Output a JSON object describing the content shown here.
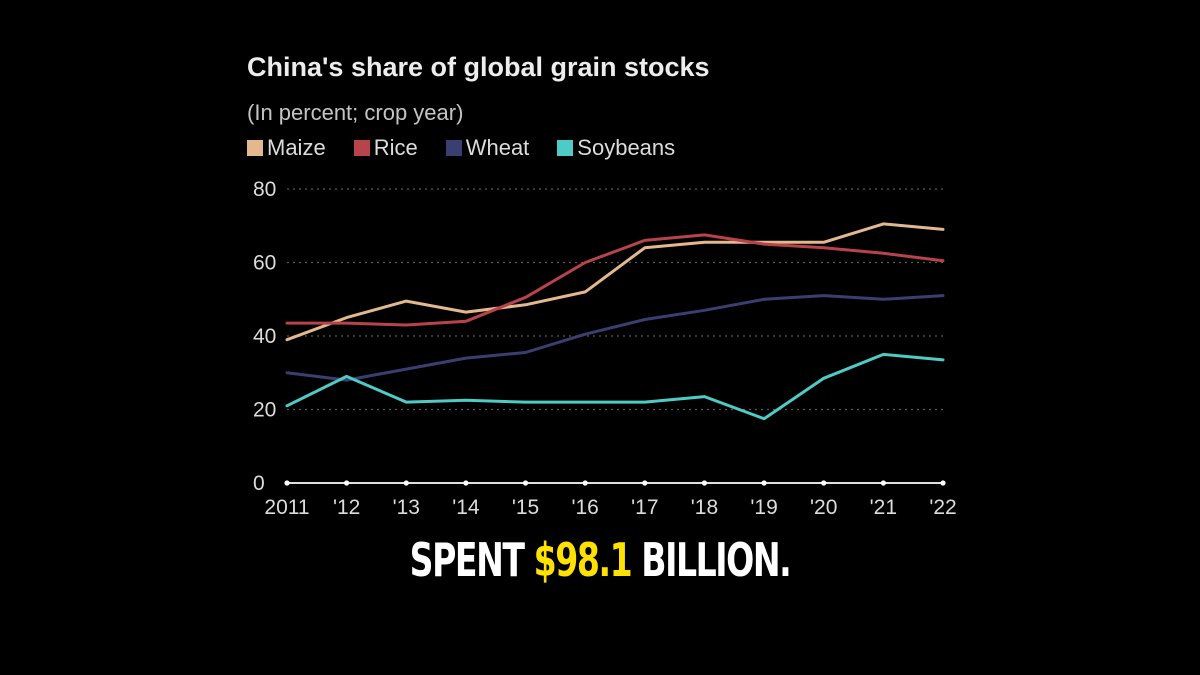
{
  "chart_data": {
    "type": "line",
    "title": "China's share of global grain stocks",
    "subtitle": "(In percent; crop year)",
    "x": [
      "2011",
      "'12",
      "'13",
      "'14",
      "'15",
      "'16",
      "'17",
      "'18",
      "'19",
      "'20",
      "'21",
      "'22"
    ],
    "ylim": [
      0,
      80
    ],
    "yticks": [
      "0",
      "20",
      "40",
      "60",
      "80"
    ],
    "grid": true,
    "legend_position": "top-left",
    "series": [
      {
        "name": "Maize",
        "color": "#e3b88e",
        "values": [
          39,
          45,
          49.5,
          46.5,
          48.5,
          52,
          64,
          65.5,
          65.5,
          65.5,
          70.5,
          69
        ]
      },
      {
        "name": "Rice",
        "color": "#b8434b",
        "values": [
          43.5,
          43.5,
          43,
          44,
          50.5,
          60,
          66,
          67.5,
          65,
          64,
          62.5,
          60.5
        ]
      },
      {
        "name": "Wheat",
        "color": "#3a3f72",
        "values": [
          30,
          28,
          31,
          34,
          35.5,
          40.5,
          44.5,
          47,
          50,
          51,
          50,
          51
        ]
      },
      {
        "name": "Soybeans",
        "color": "#4ecbc4",
        "values": [
          21,
          29,
          22,
          22.5,
          22,
          22,
          22,
          23.5,
          17.5,
          28.5,
          35,
          33.5
        ]
      }
    ]
  },
  "caption": {
    "prefix": "SPENT",
    "highlight": "$98.1",
    "suffix": "BILLION.",
    "highlight_color": "#ffe100"
  }
}
